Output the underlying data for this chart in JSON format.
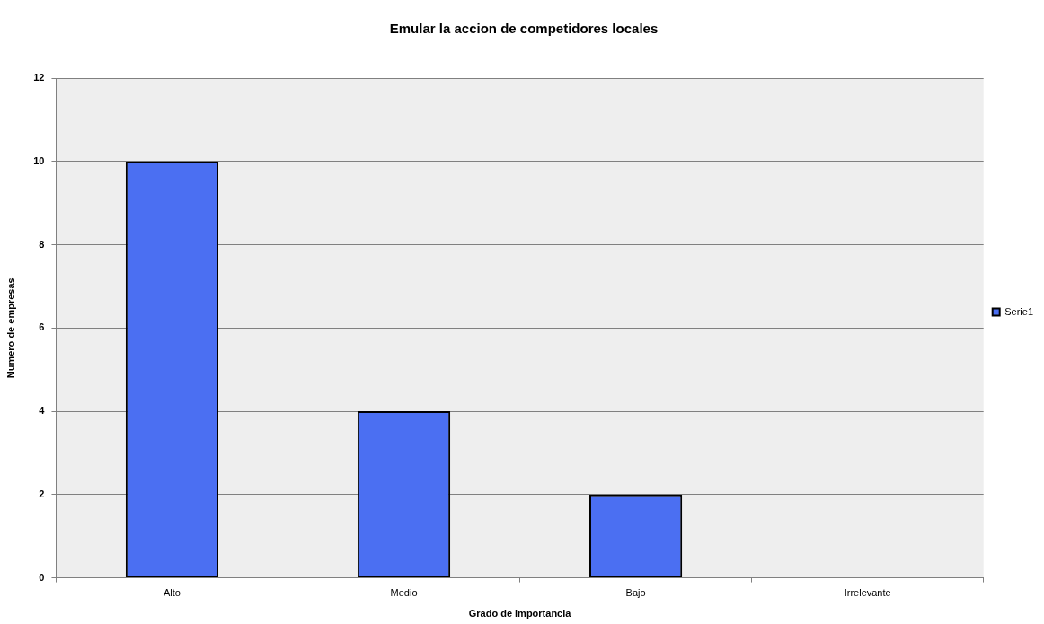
{
  "chart_data": {
    "type": "bar",
    "title": "Emular la accion de competidores locales",
    "xlabel": "Grado de importancia",
    "ylabel": "Numero de empresas",
    "categories": [
      "Alto",
      "Medio",
      "Bajo",
      "Irrelevante"
    ],
    "series": [
      {
        "name": "Serie1",
        "color": "#4b6ff2",
        "values": [
          10,
          4,
          2,
          0
        ]
      }
    ],
    "ylim": [
      0,
      12
    ],
    "yticks": [
      0,
      2,
      4,
      6,
      8,
      10,
      12
    ],
    "grid": "y",
    "legend": "right"
  }
}
